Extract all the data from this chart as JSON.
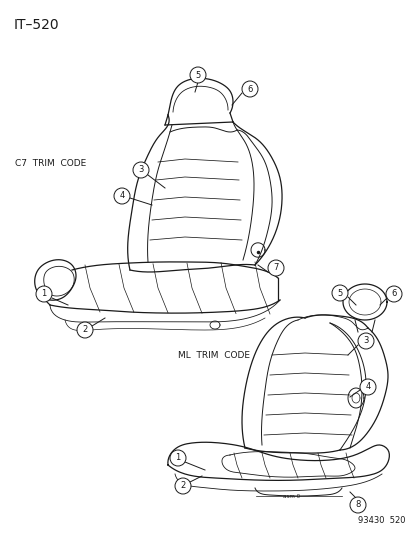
{
  "title": "IT–520",
  "background_color": "#ffffff",
  "line_color": "#1a1a1a",
  "footer_text": "93430  520",
  "c7_label": "C7  TRIM  CODE",
  "ml_label": "ML  TRIM  CODE",
  "title_fontsize": 10,
  "label_fontsize": 6.5,
  "footer_fontsize": 6,
  "callout_fontsize": 6,
  "lw": 0.9
}
